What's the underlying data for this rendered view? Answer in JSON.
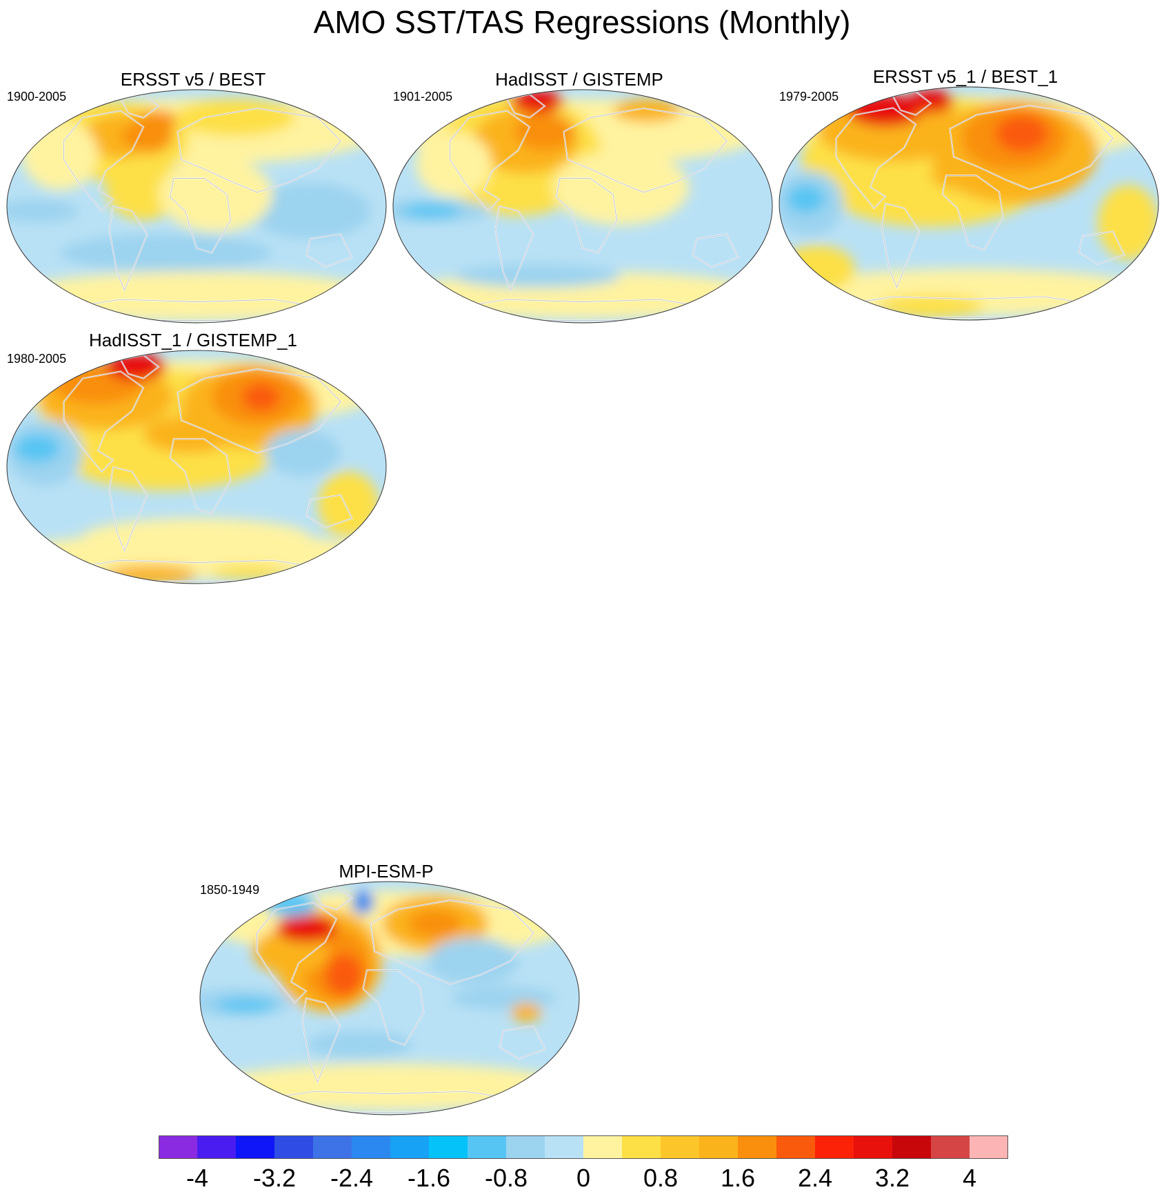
{
  "title": "AMO SST/TAS Regressions (Monthly)",
  "panels": [
    {
      "title": "ERSST v5 / BEST",
      "period": "1900-2005",
      "blobs": [
        [
          "#fde046",
          0.28,
          0.22,
          0.2,
          0.17
        ],
        [
          "#fbb31b",
          0.32,
          0.2,
          0.12,
          0.1
        ],
        [
          "#f98f0c",
          0.37,
          0.2,
          0.07,
          0.06
        ],
        [
          "#fde046",
          0.36,
          0.42,
          0.1,
          0.14
        ],
        [
          "#f98f0c",
          0.4,
          0.13,
          0.06,
          0.04
        ],
        [
          "#fde046",
          0.6,
          0.12,
          0.16,
          0.08
        ],
        [
          "#9cd3ef",
          0.08,
          0.52,
          0.11,
          0.05
        ],
        [
          "#9cd3ef",
          0.42,
          0.7,
          0.28,
          0.08
        ],
        [
          "#9cd3ef",
          0.8,
          0.52,
          0.16,
          0.12
        ],
        [
          "#fff3a0",
          0.14,
          0.28,
          0.1,
          0.15
        ],
        [
          "#fff3a0",
          0.55,
          0.45,
          0.15,
          0.16
        ],
        [
          "#fff3a0",
          0.48,
          0.95,
          0.3,
          0.04
        ]
      ]
    },
    {
      "title": "HadISST / GISTEMP",
      "period": "1901-2005",
      "blobs": [
        [
          "#fde046",
          0.33,
          0.28,
          0.22,
          0.26
        ],
        [
          "#fbb31b",
          0.35,
          0.22,
          0.14,
          0.14
        ],
        [
          "#f98f0c",
          0.4,
          0.18,
          0.08,
          0.08
        ],
        [
          "#e8110c",
          0.38,
          0.05,
          0.07,
          0.05
        ],
        [
          "#fbb31b",
          0.67,
          0.09,
          0.09,
          0.05
        ],
        [
          "#9cd3ef",
          0.1,
          0.52,
          0.16,
          0.05
        ],
        [
          "#57c5f3",
          0.1,
          0.52,
          0.08,
          0.03
        ],
        [
          "#9cd3ef",
          0.38,
          0.8,
          0.22,
          0.05
        ],
        [
          "#fff3a0",
          0.6,
          0.42,
          0.18,
          0.16
        ],
        [
          "#fff3a0",
          0.16,
          0.32,
          0.1,
          0.14
        ]
      ]
    },
    {
      "title": "ERSST v5_1 / BEST_1",
      "period": "1979-2005",
      "blobs": [
        [
          "#fde046",
          0.4,
          0.32,
          0.34,
          0.28
        ],
        [
          "#fbb31b",
          0.62,
          0.28,
          0.22,
          0.22
        ],
        [
          "#fbb31b",
          0.3,
          0.18,
          0.2,
          0.14
        ],
        [
          "#f98f0c",
          0.62,
          0.22,
          0.14,
          0.14
        ],
        [
          "#fa5a0c",
          0.64,
          0.2,
          0.07,
          0.08
        ],
        [
          "#e8110c",
          0.28,
          0.1,
          0.1,
          0.07
        ],
        [
          "#e8110c",
          0.4,
          0.06,
          0.06,
          0.05
        ],
        [
          "#fbb31b",
          0.48,
          0.38,
          0.08,
          0.06
        ],
        [
          "#fde046",
          0.92,
          0.58,
          0.08,
          0.16
        ],
        [
          "#9cd3ef",
          0.08,
          0.5,
          0.09,
          0.14
        ],
        [
          "#57c5f3",
          0.07,
          0.48,
          0.05,
          0.06
        ],
        [
          "#fde046",
          0.4,
          0.94,
          0.14,
          0.05
        ],
        [
          "#fde046",
          0.1,
          0.78,
          0.1,
          0.1
        ]
      ]
    },
    {
      "title": "HadISST_1 / GISTEMP_1",
      "period": "1980-2005",
      "blobs": [
        [
          "#fde046",
          0.42,
          0.34,
          0.34,
          0.26
        ],
        [
          "#fbb31b",
          0.64,
          0.24,
          0.18,
          0.18
        ],
        [
          "#f98f0c",
          0.66,
          0.2,
          0.12,
          0.12
        ],
        [
          "#fa5a0c",
          0.67,
          0.2,
          0.05,
          0.06
        ],
        [
          "#fbb31b",
          0.26,
          0.2,
          0.18,
          0.14
        ],
        [
          "#f98f0c",
          0.24,
          0.14,
          0.12,
          0.09
        ],
        [
          "#e8110c",
          0.34,
          0.07,
          0.08,
          0.06
        ],
        [
          "#fbb31b",
          0.48,
          0.36,
          0.12,
          0.08
        ],
        [
          "#9cd3ef",
          0.1,
          0.44,
          0.1,
          0.14
        ],
        [
          "#57c5f3",
          0.08,
          0.42,
          0.06,
          0.06
        ],
        [
          "#9cd3ef",
          0.78,
          0.44,
          0.1,
          0.1
        ],
        [
          "#fde046",
          0.9,
          0.66,
          0.08,
          0.14
        ],
        [
          "#fbb31b",
          0.38,
          0.96,
          0.12,
          0.04
        ],
        [
          "#fde046",
          0.64,
          0.95,
          0.1,
          0.03
        ],
        [
          "#fff3a0",
          0.5,
          0.8,
          0.3,
          0.08
        ]
      ]
    },
    {
      "title": "MPI-ESM-P",
      "period": "1850-1949",
      "blobs": [
        [
          "#fbb31b",
          0.34,
          0.34,
          0.14,
          0.22
        ],
        [
          "#f98f0c",
          0.36,
          0.36,
          0.09,
          0.16
        ],
        [
          "#fa5a0c",
          0.38,
          0.4,
          0.05,
          0.09
        ],
        [
          "#fbb31b",
          0.24,
          0.3,
          0.1,
          0.1
        ],
        [
          "#e8110c",
          0.28,
          0.2,
          0.08,
          0.06
        ],
        [
          "#fbb31b",
          0.62,
          0.18,
          0.14,
          0.12
        ],
        [
          "#f98f0c",
          0.62,
          0.18,
          0.07,
          0.06
        ],
        [
          "#57c5f3",
          0.24,
          0.1,
          0.07,
          0.05
        ],
        [
          "#9cd3ef",
          0.72,
          0.34,
          0.12,
          0.1
        ],
        [
          "#9cd3ef",
          0.1,
          0.52,
          0.14,
          0.06
        ],
        [
          "#57c5f3",
          0.12,
          0.53,
          0.08,
          0.03
        ],
        [
          "#2b88f0",
          0.43,
          0.09,
          0.03,
          0.05
        ],
        [
          "#9cd3ef",
          0.42,
          0.7,
          0.14,
          0.06
        ],
        [
          "#9cd3ef",
          0.8,
          0.5,
          0.14,
          0.05
        ],
        [
          "#fbb31b",
          0.86,
          0.56,
          0.04,
          0.04
        ]
      ]
    }
  ],
  "colorbar": {
    "colors": [
      "#8a2be2",
      "#4b1cf0",
      "#0f16f7",
      "#2f4de5",
      "#3e73e8",
      "#2b88f0",
      "#18a2f5",
      "#05c3f8",
      "#57c5f3",
      "#9cd3ef",
      "#b9e1f5",
      "#fff3a0",
      "#fde046",
      "#fcc62b",
      "#fbb31b",
      "#f98f0c",
      "#fa5a0c",
      "#fc2208",
      "#e8110c",
      "#c8070b",
      "#d64545",
      "#fdb4b4"
    ],
    "labels": [
      "-4",
      "-3.2",
      "-2.4",
      "-1.6",
      "-0.8",
      "0",
      "0.8",
      "1.6",
      "2.4",
      "3.2",
      "4"
    ]
  }
}
